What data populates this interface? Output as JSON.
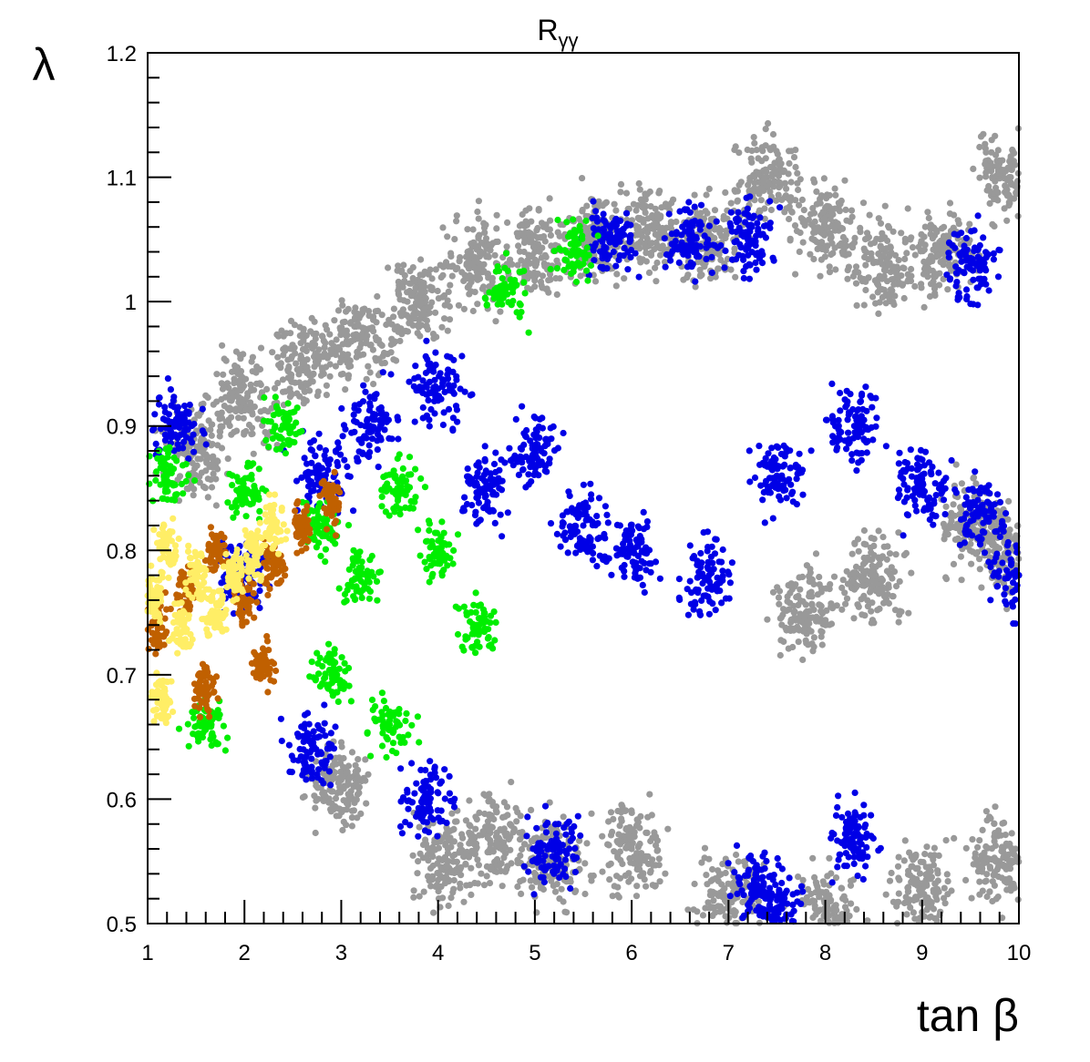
{
  "chart_data": {
    "type": "scatter",
    "title": "R",
    "title_subscript": "γγ",
    "xlabel": "tan β",
    "ylabel": "λ",
    "xlim": [
      1,
      10
    ],
    "ylim": [
      0.5,
      1.2
    ],
    "x_ticks": [
      "1",
      "2",
      "3",
      "4",
      "5",
      "6",
      "7",
      "8",
      "9",
      "10"
    ],
    "y_ticks": [
      "0.5",
      "0.6",
      "0.7",
      "0.8",
      "0.9",
      "1",
      "1.1",
      "1.2"
    ],
    "grid": false,
    "legend": "none",
    "series": [
      {
        "color": "#999999",
        "region_summary": "broad band: lambda ~0.72-0.92 at tanb 1.5, widening to ~0.5-1.1 at tanb 10",
        "points": [
          [
            1.5,
            0.88
          ],
          [
            2.0,
            0.92
          ],
          [
            2.6,
            0.95
          ],
          [
            3.2,
            0.97
          ],
          [
            3.8,
            1.0
          ],
          [
            4.4,
            1.03
          ],
          [
            5.0,
            1.04
          ],
          [
            5.6,
            1.05
          ],
          [
            6.2,
            1.06
          ],
          [
            6.8,
            1.05
          ],
          [
            7.4,
            1.1
          ],
          [
            8.0,
            1.06
          ],
          [
            8.6,
            1.03
          ],
          [
            9.2,
            1.04
          ],
          [
            9.9,
            1.1
          ],
          [
            5.2,
            0.55
          ],
          [
            6.0,
            0.56
          ],
          [
            7.0,
            0.52
          ],
          [
            8.0,
            0.51
          ],
          [
            9.0,
            0.53
          ],
          [
            9.8,
            0.55
          ],
          [
            4.1,
            0.55
          ],
          [
            4.6,
            0.57
          ],
          [
            3.0,
            0.61
          ],
          [
            8.5,
            0.78
          ],
          [
            9.5,
            0.82
          ],
          [
            9.9,
            0.8
          ],
          [
            7.8,
            0.75
          ]
        ]
      },
      {
        "color": "#0000e6",
        "region_summary": "lambda ~0.70-0.92 at tanb 2, spreading to ~0.55-1.05 over tanb 4-10",
        "points": [
          [
            1.3,
            0.9
          ],
          [
            2.0,
            0.78
          ],
          [
            2.8,
            0.86
          ],
          [
            3.3,
            0.9
          ],
          [
            4.0,
            0.93
          ],
          [
            4.5,
            0.85
          ],
          [
            5.0,
            0.88
          ],
          [
            5.5,
            0.82
          ],
          [
            6.0,
            0.8
          ],
          [
            6.8,
            0.78
          ],
          [
            7.5,
            0.86
          ],
          [
            8.3,
            0.9
          ],
          [
            9.0,
            0.85
          ],
          [
            9.6,
            0.83
          ],
          [
            10.0,
            0.78
          ],
          [
            5.8,
            1.05
          ],
          [
            6.6,
            1.05
          ],
          [
            7.2,
            1.05
          ],
          [
            9.5,
            1.03
          ],
          [
            5.2,
            0.56
          ],
          [
            7.3,
            0.53
          ],
          [
            7.5,
            0.51
          ],
          [
            8.3,
            0.57
          ],
          [
            3.9,
            0.6
          ],
          [
            2.7,
            0.64
          ]
        ]
      },
      {
        "color": "#00ee00",
        "region_summary": "lambda ~0.68-0.93 over tanb 1.1-4.8",
        "points": [
          [
            1.2,
            0.86
          ],
          [
            1.6,
            0.66
          ],
          [
            2.0,
            0.85
          ],
          [
            2.4,
            0.9
          ],
          [
            2.8,
            0.82
          ],
          [
            3.2,
            0.78
          ],
          [
            3.6,
            0.85
          ],
          [
            4.0,
            0.8
          ],
          [
            4.4,
            0.74
          ],
          [
            4.7,
            1.01
          ],
          [
            5.4,
            1.04
          ],
          [
            3.5,
            0.66
          ],
          [
            2.9,
            0.7
          ]
        ]
      },
      {
        "color": "#c06000",
        "region_summary": "lambda ~0.69-0.88 over tanb 1-3",
        "points": [
          [
            1.1,
            0.74
          ],
          [
            1.4,
            0.77
          ],
          [
            1.7,
            0.8
          ],
          [
            2.0,
            0.76
          ],
          [
            2.3,
            0.79
          ],
          [
            2.6,
            0.82
          ],
          [
            2.9,
            0.84
          ],
          [
            1.6,
            0.69
          ],
          [
            2.2,
            0.71
          ]
        ]
      },
      {
        "color": "#ffee66",
        "region_summary": "lambda ~0.68-0.84 over tanb 1-2.3",
        "points": [
          [
            1.05,
            0.76
          ],
          [
            1.2,
            0.8
          ],
          [
            1.35,
            0.74
          ],
          [
            1.5,
            0.78
          ],
          [
            1.7,
            0.75
          ],
          [
            1.9,
            0.78
          ],
          [
            2.1,
            0.8
          ],
          [
            2.3,
            0.82
          ],
          [
            1.15,
            0.68
          ]
        ]
      }
    ]
  }
}
